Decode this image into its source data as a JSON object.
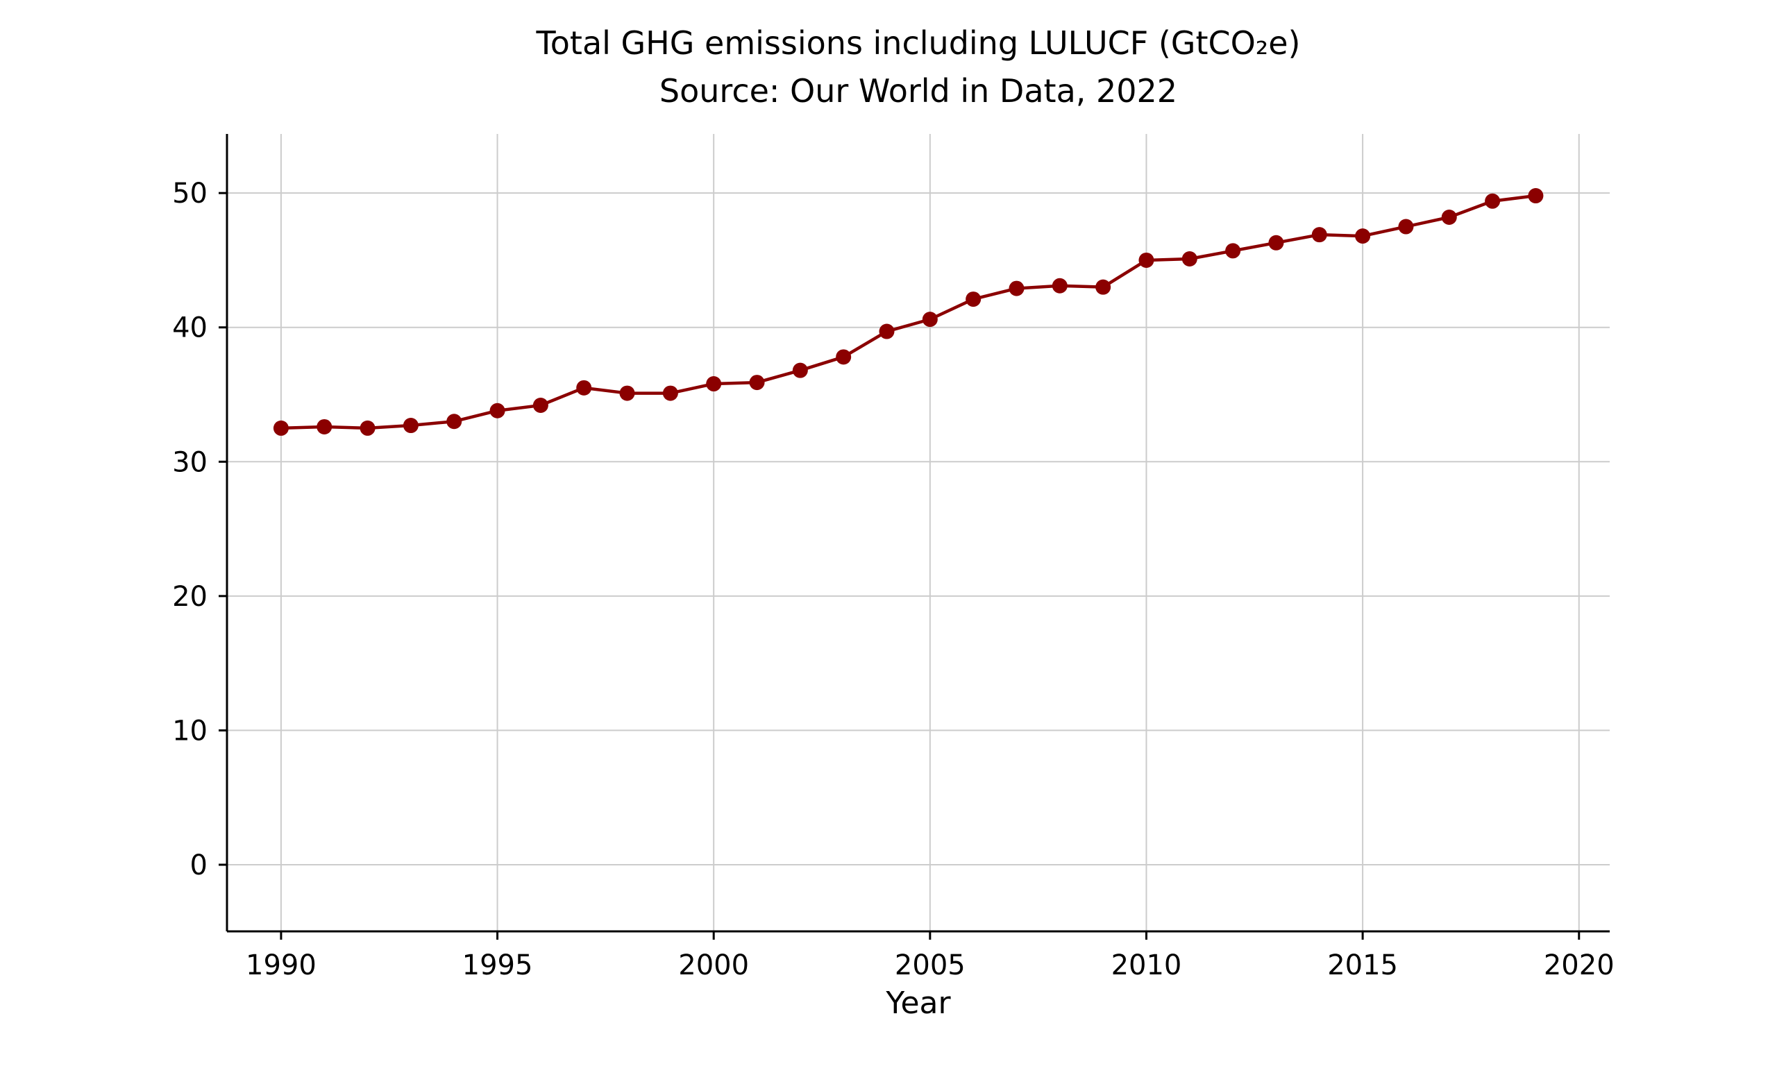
{
  "header": {
    "title": "Total GHG emissions including LULUCF (GtCO₂e)",
    "subtitle": "Source: Our World in Data, 2022"
  },
  "chart_data": {
    "type": "line",
    "title": "Total GHG emissions including LULUCF (GtCO₂e)",
    "subtitle": "Source: Our World in Data, 2022",
    "xlabel": "Year",
    "ylabel": "",
    "x": [
      1990,
      1991,
      1992,
      1993,
      1994,
      1995,
      1996,
      1997,
      1998,
      1999,
      2000,
      2001,
      2002,
      2003,
      2004,
      2005,
      2006,
      2007,
      2008,
      2009,
      2010,
      2011,
      2012,
      2013,
      2014,
      2015,
      2016,
      2017,
      2018,
      2019
    ],
    "series": [
      {
        "name": "Total GHG emissions including LULUCF",
        "color": "#8B0000",
        "values": [
          32.5,
          32.6,
          32.5,
          32.7,
          33.0,
          33.8,
          34.2,
          35.5,
          35.1,
          35.1,
          35.8,
          35.9,
          36.8,
          37.8,
          39.7,
          40.6,
          42.1,
          42.9,
          43.1,
          43.0,
          45.0,
          45.1,
          45.7,
          46.3,
          46.9,
          46.8,
          47.5,
          48.2,
          49.4,
          49.8
        ]
      }
    ],
    "xticks": [
      1990,
      1995,
      2000,
      2005,
      2010,
      2015,
      2020
    ],
    "yticks": [
      0,
      10,
      20,
      30,
      40,
      50
    ],
    "xlim": [
      1988.75,
      2020.71
    ],
    "ylim": [
      -4.96,
      54.4
    ],
    "grid": true,
    "grid_color": "#cccccc",
    "axis_color": "#000000",
    "marker": "circle",
    "legend_position": "none"
  }
}
